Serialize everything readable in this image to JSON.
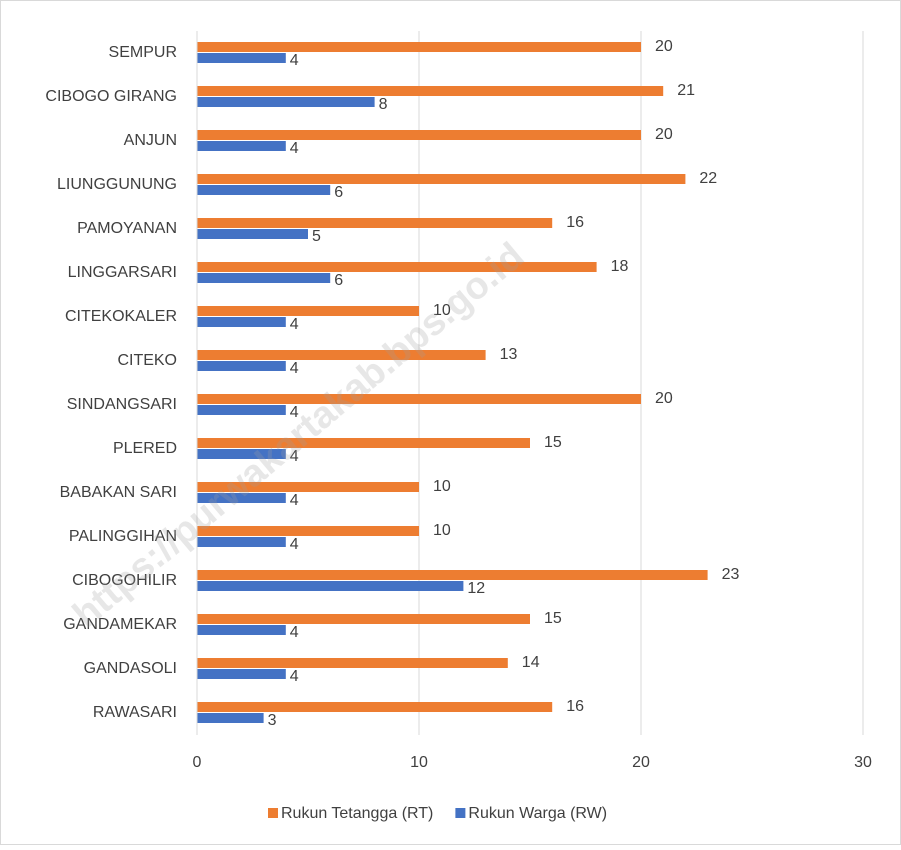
{
  "chart_data": {
    "type": "barh",
    "categories": [
      "SEMPUR",
      "CIBOGO GIRANG",
      "ANJUN",
      "LIUNGGUNUNG",
      "PAMOYANAN",
      "LINGGARSARI",
      "CITEKOKALER",
      "CITEKO",
      "SINDANGSARI",
      "PLERED",
      "BABAKAN SARI",
      "PALINGGIHAN",
      "CIBOGOHILIR",
      "GANDAMEKAR",
      "GANDASOLI",
      "RAWASARI"
    ],
    "series": [
      {
        "name": "Rukun Tetangga (RT)",
        "color": "#ed7d31",
        "values": [
          20,
          21,
          20,
          22,
          16,
          18,
          10,
          13,
          20,
          15,
          10,
          10,
          23,
          15,
          14,
          16
        ]
      },
      {
        "name": "Rukun Warga (RW)",
        "color": "#4472c4",
        "values": [
          4,
          8,
          4,
          6,
          5,
          6,
          4,
          4,
          4,
          4,
          4,
          4,
          12,
          4,
          4,
          3
        ]
      }
    ],
    "xlim": [
      0,
      30
    ],
    "xticks": [
      0,
      10,
      20,
      30
    ],
    "grid": true,
    "legend": "bottom",
    "watermark": "https://purwakartakab.bps.go.id"
  }
}
